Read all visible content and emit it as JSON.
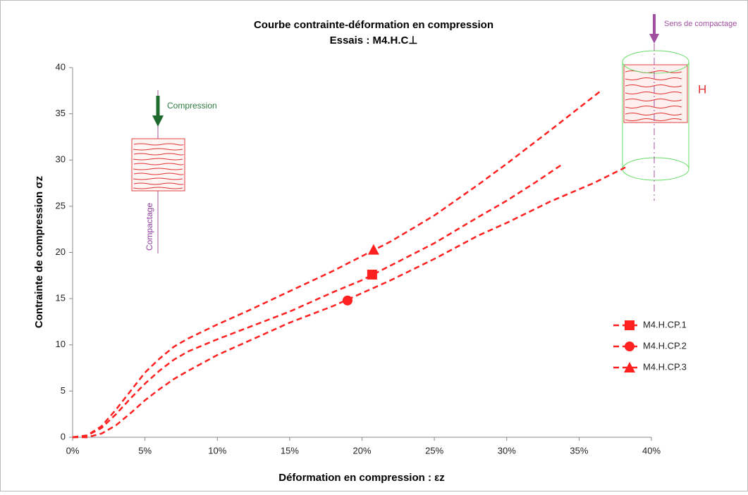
{
  "chart_data": {
    "type": "line",
    "title": "Courbe contrainte-déformation en compression",
    "subtitle": "Essais : M4.H.C⊥",
    "x_label": "Déformation en compression :  εz",
    "y_label": "Contrainte de compression   σz",
    "xlim": [
      0,
      40
    ],
    "ylim": [
      0,
      40
    ],
    "xticks": [
      {
        "value": 0,
        "label": "0%"
      },
      {
        "value": 5,
        "label": "5%"
      },
      {
        "value": 10,
        "label": "10%"
      },
      {
        "value": 15,
        "label": "15%"
      },
      {
        "value": 20,
        "label": "20%"
      },
      {
        "value": 25,
        "label": "25%"
      },
      {
        "value": 30,
        "label": "30%"
      },
      {
        "value": 35,
        "label": "35%"
      },
      {
        "value": 40,
        "label": "40%"
      }
    ],
    "yticks": [
      0,
      5,
      10,
      15,
      20,
      25,
      30,
      35,
      40
    ],
    "grid": false,
    "legend_position": "right",
    "series": [
      {
        "name": "M4.H.CP.1",
        "color": "#ff2020",
        "marker": "square",
        "x": [
          0,
          1,
          2,
          3,
          4,
          5,
          6,
          7,
          8,
          10,
          12,
          15,
          18,
          20,
          22,
          25,
          28,
          30,
          32,
          33.9
        ],
        "values": [
          0,
          0.2,
          1,
          2.5,
          4.2,
          5.8,
          7.2,
          8.4,
          9.3,
          10.6,
          11.8,
          13.6,
          15.7,
          17,
          18.6,
          21,
          23.8,
          25.6,
          27.6,
          29.6
        ],
        "marker_point": [
          20.7,
          17.6
        ]
      },
      {
        "name": "M4.H.CP.2",
        "color": "#ff2020",
        "marker": "circle",
        "x": [
          0,
          1,
          2,
          3,
          4,
          5,
          6,
          7,
          8,
          10,
          12,
          15,
          18,
          20,
          22,
          25,
          28,
          30,
          33,
          36,
          38.2
        ],
        "values": [
          0,
          0,
          0.4,
          1.3,
          2.6,
          4,
          5.2,
          6.3,
          7.2,
          8.9,
          10.3,
          12.4,
          14.2,
          15.6,
          17,
          19.3,
          21.8,
          23.2,
          25.5,
          27.5,
          29.2
        ],
        "marker_point": [
          19,
          14.8
        ]
      },
      {
        "name": "M4.H.CP.3",
        "color": "#ff2020",
        "marker": "triangle",
        "x": [
          0,
          1,
          2,
          3,
          4,
          5,
          6,
          7,
          8,
          10,
          12,
          15,
          18,
          20,
          22,
          25,
          28,
          30,
          33,
          36.6
        ],
        "values": [
          0,
          0.2,
          1.2,
          3,
          5,
          7,
          8.5,
          9.8,
          10.7,
          12.2,
          13.6,
          15.8,
          18,
          19.6,
          21.2,
          24,
          27.3,
          29.6,
          33.2,
          37.6
        ],
        "marker_point": [
          20.8,
          20.3
        ]
      }
    ],
    "annotations": [
      "Compression",
      "Compactage",
      "Sens de compactage",
      "H"
    ]
  }
}
